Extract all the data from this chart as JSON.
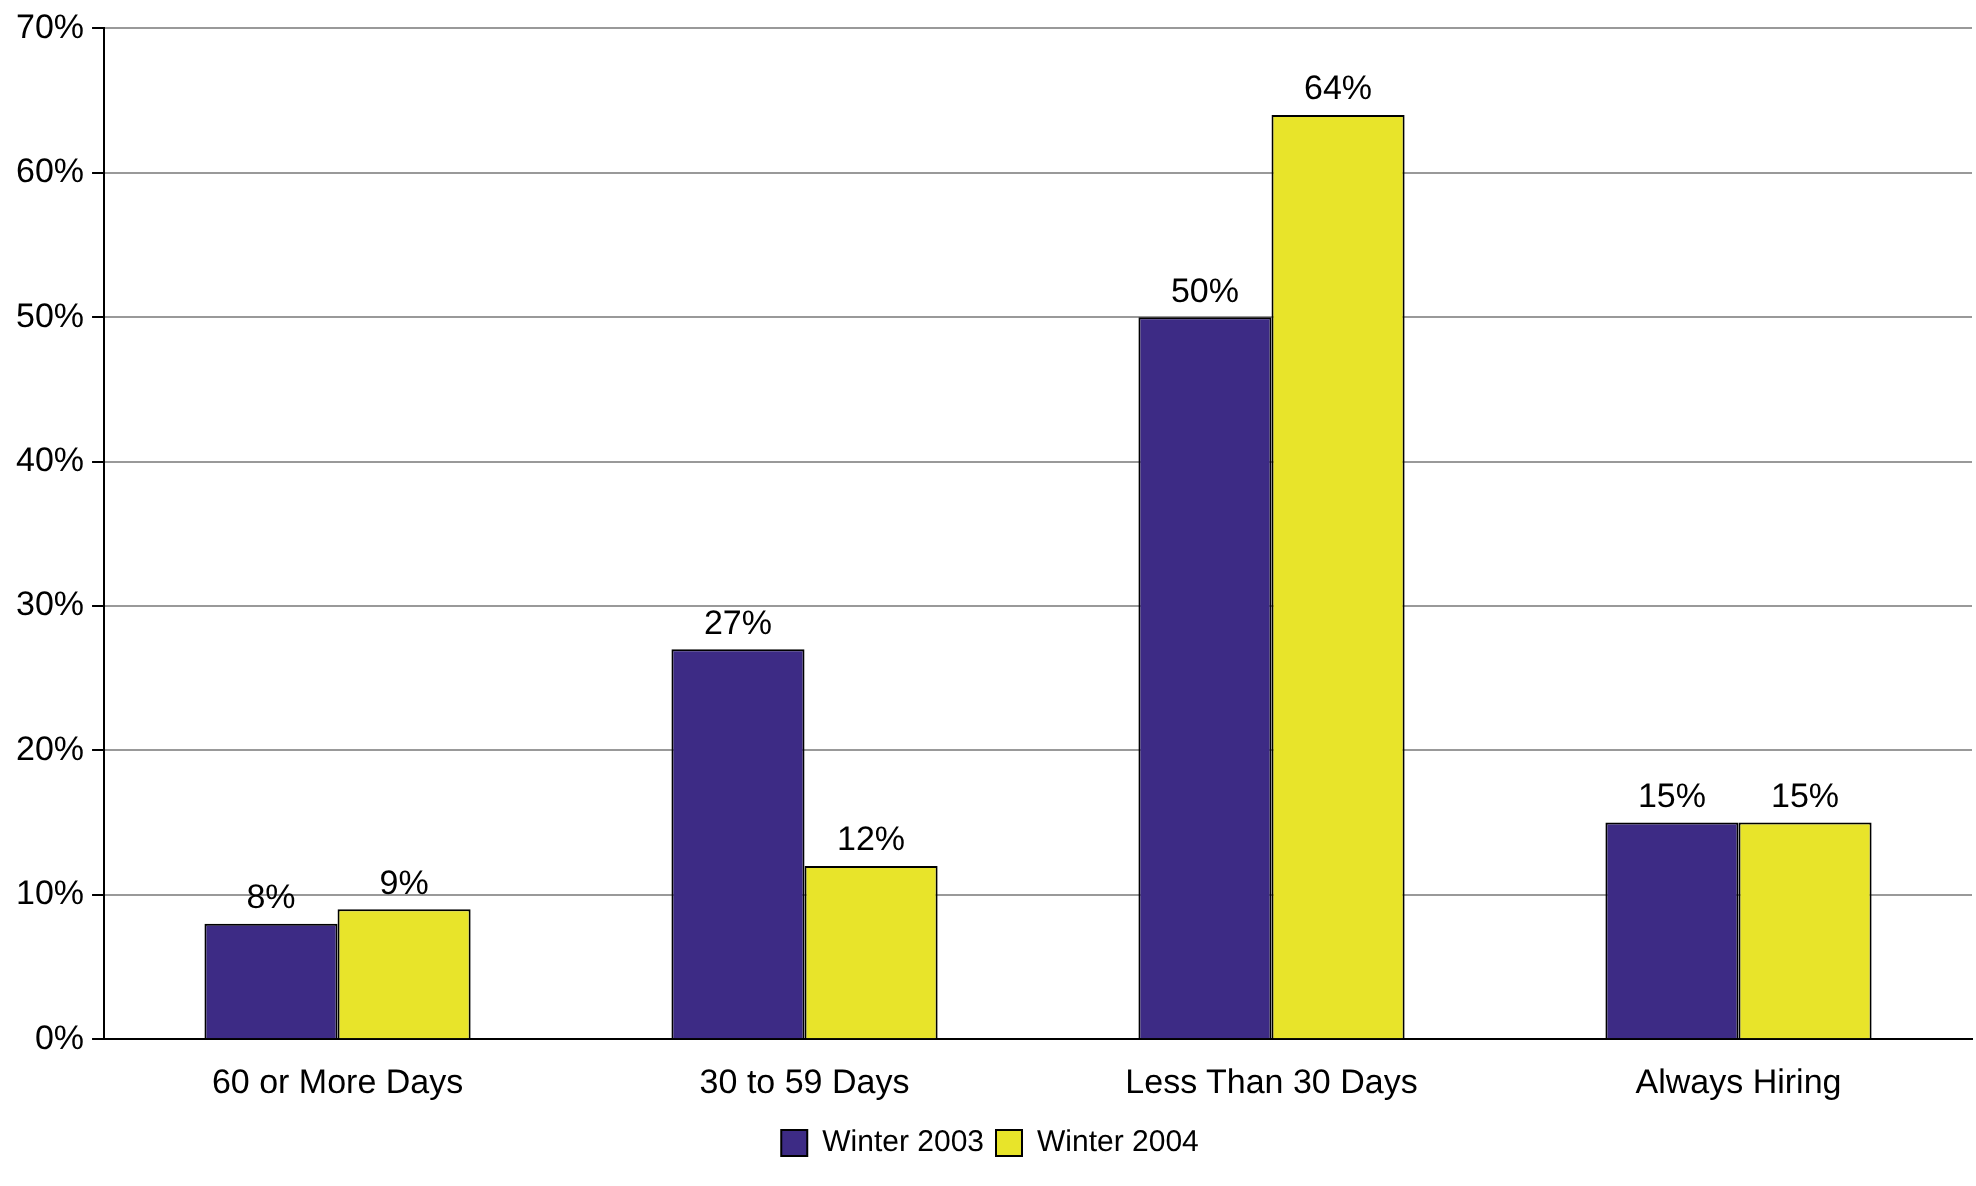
{
  "chart_data": {
    "type": "bar",
    "categories": [
      "60 or More Days",
      "30 to 59 Days",
      "Less Than 30 Days",
      "Always Hiring"
    ],
    "series": [
      {
        "name": "Winter 2003",
        "color": "#3d2b85",
        "values": [
          8,
          27,
          50,
          15
        ]
      },
      {
        "name": "Winter 2004",
        "color": "#e8e42a",
        "values": [
          9,
          12,
          64,
          15
        ]
      }
    ],
    "ylim": [
      0,
      70
    ],
    "yticks": [
      {
        "value": 0,
        "label": "0%"
      },
      {
        "value": 10,
        "label": "10%"
      },
      {
        "value": 20,
        "label": "20%"
      },
      {
        "value": 30,
        "label": "30%"
      },
      {
        "value": 40,
        "label": "40%"
      },
      {
        "value": 50,
        "label": "50%"
      },
      {
        "value": 60,
        "label": "60%"
      },
      {
        "value": 70,
        "label": "70%"
      }
    ],
    "value_labels": [
      [
        "8%",
        "27%",
        "50%",
        "15%"
      ],
      [
        "9%",
        "12%",
        "64%",
        "15%"
      ]
    ],
    "grid": "y",
    "legend": "bottom"
  }
}
